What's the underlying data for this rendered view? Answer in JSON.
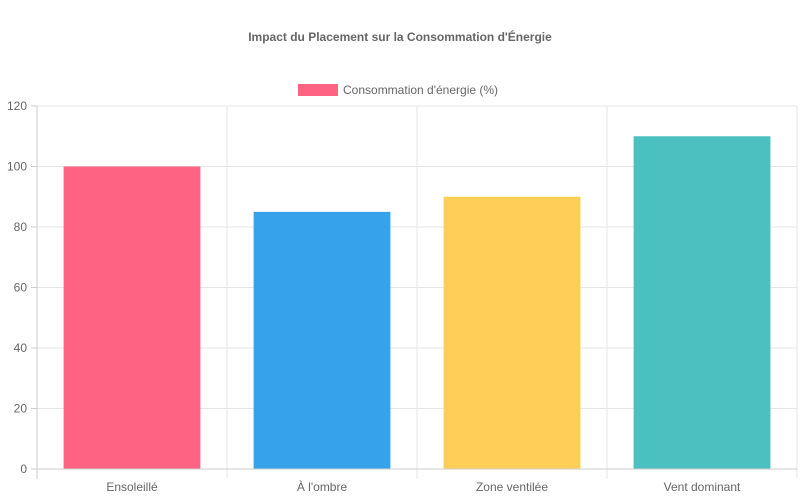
{
  "chart_data": {
    "type": "bar",
    "title": "Impact du Placement sur la Consommation d'Énergie",
    "categories": [
      "Ensoleillé",
      "À l'ombre",
      "Zone ventilée",
      "Vent dominant"
    ],
    "series": [
      {
        "name": "Consommation d'énergie (%)",
        "values": [
          100,
          85,
          90,
          110
        ],
        "colors": [
          "#ff6384",
          "#36a2eb",
          "#ffce56",
          "#4bc0c0"
        ]
      }
    ],
    "ylim": [
      0,
      120
    ],
    "yticks": [
      0,
      20,
      40,
      60,
      80,
      100,
      120
    ],
    "grid": true,
    "legend": "top"
  }
}
